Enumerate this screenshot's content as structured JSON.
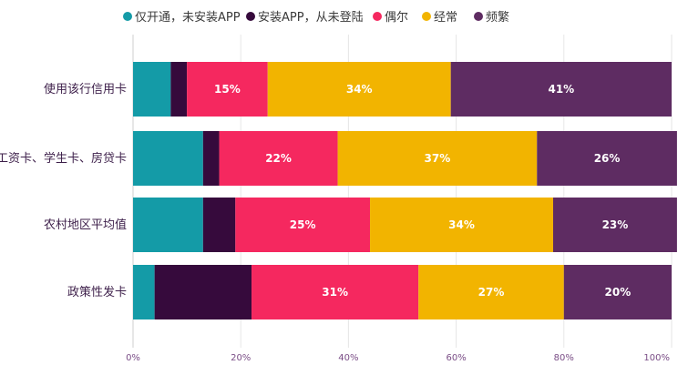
{
  "chart_data": {
    "type": "bar",
    "orientation": "horizontal",
    "stacked": true,
    "categories": [
      "使用该行信用卡",
      "工资卡、学生卡、房贷卡",
      "农村地区平均值",
      "政策性发卡"
    ],
    "series": [
      {
        "name": "仅开通，未安装APP",
        "color": "#149ba7",
        "values": [
          7,
          13,
          13,
          4
        ],
        "labels": [
          "",
          "",
          "",
          ""
        ]
      },
      {
        "name": "安装APP，从未登陆",
        "color": "#360a3c",
        "values": [
          3,
          3,
          6,
          18
        ],
        "labels": [
          "",
          "",
          "",
          ""
        ]
      },
      {
        "name": "偶尔",
        "color": "#f5285f",
        "values": [
          15,
          22,
          25,
          31
        ],
        "labels": [
          "15%",
          "22%",
          "25%",
          "31%"
        ]
      },
      {
        "name": "经常",
        "color": "#f2b400",
        "values": [
          34,
          37,
          34,
          27
        ],
        "labels": [
          "34%",
          "37%",
          "34%",
          "27%"
        ]
      },
      {
        "name": "频繁",
        "color": "#5e2c62",
        "values": [
          41,
          26,
          23,
          20
        ],
        "labels": [
          "41%",
          "26%",
          "23%",
          "20%"
        ]
      }
    ],
    "xlim": [
      0,
      100
    ],
    "x_ticks": [
      "0%",
      "20%",
      "40%",
      "60%",
      "80%",
      "100%"
    ],
    "grid": true,
    "legend_position": "top-left"
  }
}
